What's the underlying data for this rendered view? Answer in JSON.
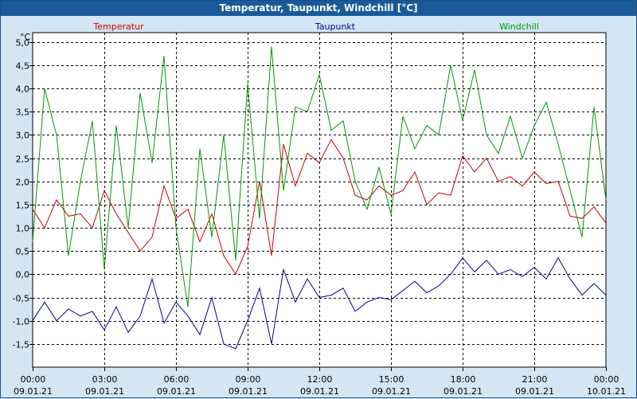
{
  "window": {
    "title": "Temperatur, Taupunkt, Windchill [°C]"
  },
  "chart_data": {
    "type": "line",
    "title": "Temperatur, Taupunkt, Windchill [°C]",
    "ylabel": "°C",
    "ylim": [
      -2.0,
      5.2
    ],
    "yticks": [
      "5,0",
      "4,5",
      "4,0",
      "3,5",
      "3,0",
      "2,5",
      "2,0",
      "1,5",
      "1,0",
      "0,5",
      "0,0",
      "-0,5",
      "-1,0",
      "-1,5"
    ],
    "ytick_values": [
      5.0,
      4.5,
      4.0,
      3.5,
      3.0,
      2.5,
      2.0,
      1.5,
      1.0,
      0.5,
      0.0,
      -0.5,
      -1.0,
      -1.5
    ],
    "xlim_hours": [
      0,
      24
    ],
    "xticks": [
      {
        "time": "00:00",
        "date": "09.01.21"
      },
      {
        "time": "03:00",
        "date": "09.01.21"
      },
      {
        "time": "06:00",
        "date": "09.01.21"
      },
      {
        "time": "09:00",
        "date": "09.01.21"
      },
      {
        "time": "12:00",
        "date": "09.01.21"
      },
      {
        "time": "15:00",
        "date": "09.01.21"
      },
      {
        "time": "18:00",
        "date": "09.01.21"
      },
      {
        "time": "21:00",
        "date": "09.01.21"
      },
      {
        "time": "00:00",
        "date": "10.01.21"
      }
    ],
    "grid": true,
    "legend_position": "top",
    "series": [
      {
        "name": "Temperatur",
        "color": "#cc0000",
        "x_hours": [
          0,
          0.5,
          1,
          1.5,
          2,
          2.5,
          3,
          3.5,
          4,
          4.5,
          5,
          5.5,
          6,
          6.5,
          7,
          7.5,
          8,
          8.5,
          9,
          9.5,
          10,
          10.5,
          11,
          11.5,
          12,
          12.5,
          13,
          13.5,
          14,
          14.5,
          15,
          15.5,
          16,
          16.5,
          17,
          17.5,
          18,
          18.5,
          19,
          19.5,
          20,
          20.5,
          21,
          21.5,
          22,
          22.5,
          23,
          23.5,
          24
        ],
        "values": [
          1.4,
          1.0,
          1.6,
          1.25,
          1.3,
          1.0,
          1.8,
          1.3,
          0.9,
          0.5,
          0.8,
          1.9,
          1.2,
          1.4,
          0.7,
          1.3,
          0.4,
          0.0,
          0.6,
          2.0,
          0.4,
          2.8,
          1.9,
          2.6,
          2.4,
          2.9,
          2.5,
          1.7,
          1.6,
          1.9,
          1.7,
          1.8,
          2.2,
          1.5,
          1.75,
          1.7,
          2.55,
          2.2,
          2.5,
          2.0,
          2.1,
          1.9,
          2.2,
          1.95,
          2.0,
          1.25,
          1.2,
          1.45,
          1.1
        ]
      },
      {
        "name": "Taupunkt",
        "color": "#000099",
        "x_hours": [
          0,
          0.5,
          1,
          1.5,
          2,
          2.5,
          3,
          3.5,
          4,
          4.5,
          5,
          5.5,
          6,
          6.5,
          7,
          7.5,
          8,
          8.5,
          9,
          9.5,
          10,
          10.5,
          11,
          11.5,
          12,
          12.5,
          13,
          13.5,
          14,
          14.5,
          15,
          15.5,
          16,
          16.5,
          17,
          17.5,
          18,
          18.5,
          19,
          19.5,
          20,
          20.5,
          21,
          21.5,
          22,
          22.5,
          23,
          23.5,
          24
        ],
        "values": [
          -1.0,
          -0.6,
          -1.0,
          -0.75,
          -0.9,
          -0.8,
          -1.2,
          -0.7,
          -1.25,
          -0.9,
          -0.1,
          -1.05,
          -0.6,
          -0.9,
          -1.3,
          -0.5,
          -1.5,
          -1.6,
          -1.0,
          -0.3,
          -1.5,
          0.1,
          -0.6,
          -0.1,
          -0.5,
          -0.45,
          -0.3,
          -0.8,
          -0.6,
          -0.5,
          -0.55,
          -0.35,
          -0.15,
          -0.4,
          -0.25,
          0.0,
          0.35,
          0.05,
          0.3,
          0.0,
          0.1,
          -0.05,
          0.15,
          -0.1,
          0.35,
          -0.1,
          -0.45,
          -0.2,
          -0.45
        ]
      },
      {
        "name": "Windchill",
        "color": "#009900",
        "x_hours": [
          0,
          0.5,
          1,
          1.5,
          2,
          2.5,
          3,
          3.5,
          4,
          4.5,
          5,
          5.5,
          6,
          6.5,
          7,
          7.5,
          8,
          8.5,
          9,
          9.5,
          10,
          10.5,
          11,
          11.5,
          12,
          12.5,
          13,
          13.5,
          14,
          14.5,
          15,
          15.5,
          16,
          16.5,
          17,
          17.5,
          18,
          18.5,
          19,
          19.5,
          20,
          20.5,
          21,
          21.5,
          22,
          22.5,
          23,
          23.5,
          24
        ],
        "values": [
          0.7,
          4.0,
          3.0,
          0.4,
          2.0,
          3.3,
          0.1,
          3.2,
          1.0,
          3.9,
          2.4,
          4.7,
          1.0,
          -0.7,
          2.7,
          0.8,
          3.0,
          0.3,
          4.1,
          1.2,
          4.9,
          1.8,
          3.6,
          3.5,
          4.3,
          3.1,
          3.3,
          2.0,
          1.4,
          2.3,
          1.3,
          3.4,
          2.7,
          3.2,
          3.0,
          4.5,
          3.3,
          4.4,
          3.0,
          2.6,
          3.4,
          2.5,
          3.2,
          3.7,
          2.8,
          1.8,
          0.8,
          3.6,
          1.6
        ]
      }
    ]
  }
}
